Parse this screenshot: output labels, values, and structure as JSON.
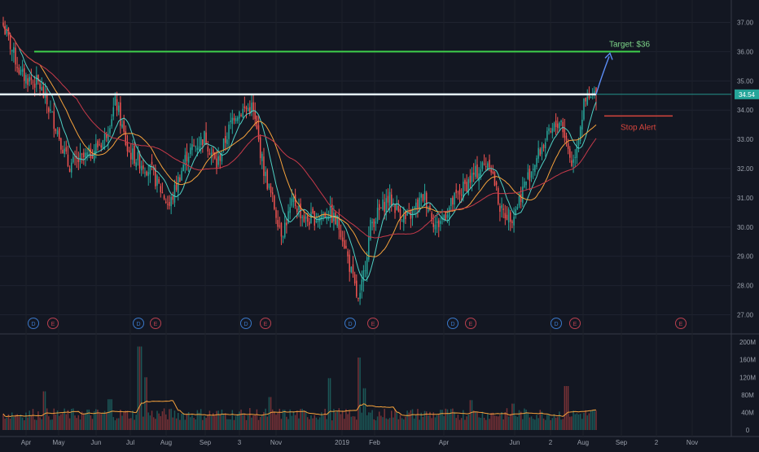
{
  "chart_data": [
    {
      "type": "candlestick",
      "panel": "price",
      "ylim": [
        26.4,
        37.6
      ],
      "y_ticks": [
        "27.00",
        "28.00",
        "29.00",
        "30.00",
        "31.00",
        "32.00",
        "33.00",
        "34.00",
        "35.00",
        "36.00",
        "37.00"
      ],
      "x_ticks": [
        "Apr",
        "May",
        "Jun",
        "Jul",
        "Aug",
        "Sep",
        "3",
        "Nov",
        "2019",
        "Feb",
        "Apr",
        "Jun",
        "2",
        "Aug",
        "Sep",
        "2",
        "Nov"
      ],
      "price_path": [
        {
          "t": 0,
          "v": 36.9
        },
        {
          "t": 0.03,
          "v": 35.2
        },
        {
          "t": 0.06,
          "v": 34.9
        },
        {
          "t": 0.09,
          "v": 33.4
        },
        {
          "t": 0.11,
          "v": 32.1
        },
        {
          "t": 0.14,
          "v": 32.4
        },
        {
          "t": 0.17,
          "v": 33.0
        },
        {
          "t": 0.19,
          "v": 34.3
        },
        {
          "t": 0.21,
          "v": 32.6
        },
        {
          "t": 0.25,
          "v": 31.9
        },
        {
          "t": 0.28,
          "v": 30.7
        },
        {
          "t": 0.31,
          "v": 32.5
        },
        {
          "t": 0.34,
          "v": 33.1
        },
        {
          "t": 0.36,
          "v": 32.1
        },
        {
          "t": 0.39,
          "v": 33.9
        },
        {
          "t": 0.42,
          "v": 34.1
        },
        {
          "t": 0.44,
          "v": 31.9
        },
        {
          "t": 0.47,
          "v": 29.8
        },
        {
          "t": 0.49,
          "v": 30.9
        },
        {
          "t": 0.51,
          "v": 30.2
        },
        {
          "t": 0.55,
          "v": 30.5
        },
        {
          "t": 0.57,
          "v": 29.9
        },
        {
          "t": 0.6,
          "v": 27.3
        },
        {
          "t": 0.62,
          "v": 30.1
        },
        {
          "t": 0.65,
          "v": 31.0
        },
        {
          "t": 0.68,
          "v": 30.2
        },
        {
          "t": 0.71,
          "v": 31.1
        },
        {
          "t": 0.73,
          "v": 30.0
        },
        {
          "t": 0.76,
          "v": 30.9
        },
        {
          "t": 0.79,
          "v": 31.7
        },
        {
          "t": 0.82,
          "v": 32.3
        },
        {
          "t": 0.84,
          "v": 30.5
        },
        {
          "t": 0.86,
          "v": 30.4
        },
        {
          "t": 0.88,
          "v": 31.5
        },
        {
          "t": 0.91,
          "v": 32.8
        },
        {
          "t": 0.94,
          "v": 33.7
        },
        {
          "t": 0.96,
          "v": 32.1
        },
        {
          "t": 0.98,
          "v": 34.2
        },
        {
          "t": 1.0,
          "v": 34.54
        }
      ],
      "moving_averages": [
        {
          "name": "MA short",
          "color": "#4fd1c5",
          "smooth": 3
        },
        {
          "name": "MA mid",
          "color": "#f6a23c",
          "smooth": 7
        },
        {
          "name": "MA long",
          "color": "#c73a4a",
          "smooth": 14
        }
      ],
      "resistance": {
        "price": 34.54,
        "color": "#e6f7ff"
      },
      "target": {
        "price": 36.0,
        "color": "#3ecf4b",
        "label": "Target: $36"
      },
      "stop_alert": {
        "price": 33.8,
        "color": "#d6453d",
        "label": "Stop Alert"
      },
      "last_price": {
        "label": "34.54",
        "color": "#26a69a"
      },
      "events": [
        {
          "type": "dividend",
          "label": "D"
        },
        {
          "type": "earnings",
          "label": "E"
        },
        {
          "type": "dividend",
          "label": "D"
        },
        {
          "type": "earnings",
          "label": "E"
        },
        {
          "type": "dividend",
          "label": "D"
        },
        {
          "type": "earnings",
          "label": "E"
        },
        {
          "type": "dividend",
          "label": "D"
        },
        {
          "type": "earnings",
          "label": "E"
        },
        {
          "type": "dividend",
          "label": "D"
        },
        {
          "type": "earnings",
          "label": "E"
        },
        {
          "type": "dividend",
          "label": "D"
        },
        {
          "type": "earnings",
          "label": "E"
        },
        {
          "type": "earnings",
          "label": "E"
        }
      ]
    },
    {
      "type": "bar",
      "panel": "volume",
      "ylim": [
        0,
        215
      ],
      "y_ticks": [
        "200M",
        "160M",
        "120M",
        "80M",
        "40M",
        "0"
      ],
      "spikes_millions": [
        {
          "t": 0.07,
          "v": 88
        },
        {
          "t": 0.18,
          "v": 70
        },
        {
          "t": 0.23,
          "v": 190
        },
        {
          "t": 0.24,
          "v": 120
        },
        {
          "t": 0.45,
          "v": 75
        },
        {
          "t": 0.55,
          "v": 118
        },
        {
          "t": 0.6,
          "v": 165
        },
        {
          "t": 0.61,
          "v": 95
        },
        {
          "t": 0.79,
          "v": 68
        },
        {
          "t": 0.86,
          "v": 60
        },
        {
          "t": 0.95,
          "v": 100
        }
      ],
      "volume_ma": {
        "color": "#f6a23c"
      },
      "colors": {
        "up": "#26a69a",
        "down": "#ef5350"
      }
    }
  ]
}
